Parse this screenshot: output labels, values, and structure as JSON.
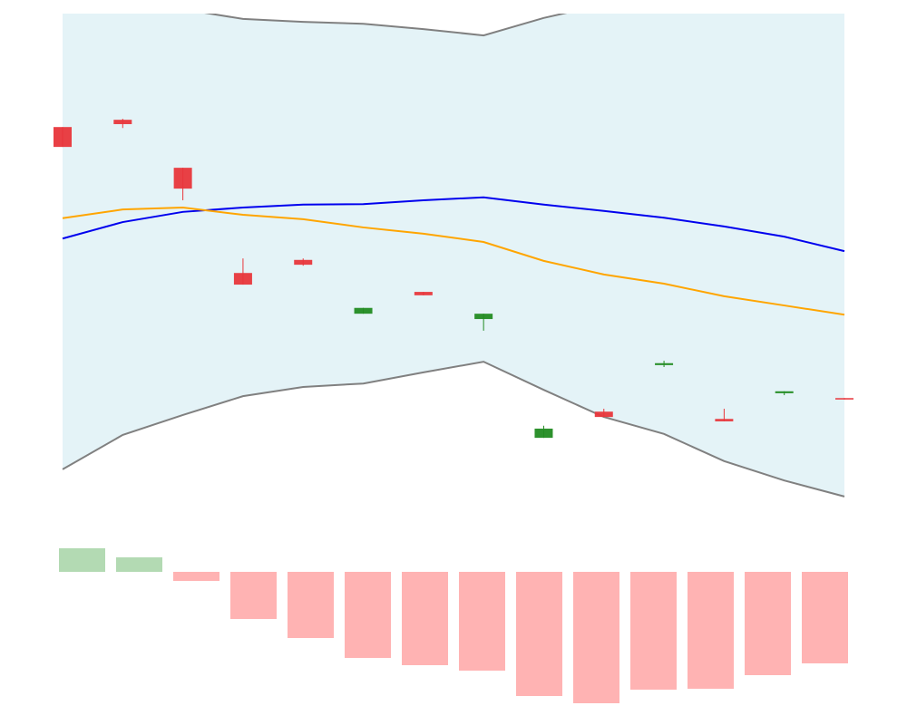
{
  "chart_data": [
    {
      "type": "candlestick",
      "open": [
        76.6,
        78.1,
        68.2,
        46.5,
        49.2,
        38.1,
        42.6,
        37.0,
        12.5,
        17.9,
        27.5,
        16.4,
        21.7,
        20.7
      ],
      "high": [
        76.6,
        78.3,
        68.2,
        49.5,
        49.5,
        39.3,
        42.6,
        38.1,
        15.0,
        18.5,
        28.4,
        18.5,
        22.1,
        20.7
      ],
      "low": [
        72.5,
        76.4,
        61.5,
        44.1,
        48.0,
        38.1,
        41.9,
        34.6,
        12.5,
        16.8,
        27.1,
        15.9,
        21.3,
        20.4
      ],
      "close": [
        72.5,
        77.2,
        63.9,
        44.1,
        48.2,
        39.3,
        41.9,
        38.1,
        14.4,
        16.8,
        27.9,
        15.9,
        22.1,
        20.4
      ],
      "up_color": "#228b22",
      "down_color": "#e8363b",
      "upper": [
        103.7,
        102.8,
        100.9,
        98.9,
        98.3,
        97.9,
        96.8,
        95.5,
        99.1,
        101.9,
        103.7,
        104.7,
        105.6,
        106.5
      ],
      "lower": [
        6.0,
        13.1,
        17.2,
        21.1,
        23.0,
        23.7,
        26.0,
        28.2,
        22.4,
        16.8,
        13.3,
        7.7,
        3.7,
        0.4
      ],
      "band_color": "#808080",
      "band_fill": "#e4f3f7",
      "series": [
        {
          "color": "#0000ee",
          "values": [
            53.6,
            57.0,
            59.1,
            60.0,
            60.6,
            60.7,
            61.5,
            62.1,
            60.6,
            59.3,
            57.9,
            56.1,
            54.0,
            51.0
          ]
        },
        {
          "color": "#ffa500",
          "values": [
            57.8,
            59.6,
            60.0,
            58.5,
            57.6,
            55.9,
            54.6,
            52.9,
            49.0,
            46.2,
            44.3,
            41.7,
            39.8,
            37.9
          ]
        }
      ],
      "ylim": [
        0,
        100
      ]
    },
    {
      "type": "bar",
      "values": [
        26,
        16,
        -10,
        -52,
        -73,
        -95,
        -103,
        -109,
        -137,
        -145,
        -130,
        -129,
        -114,
        -101
      ],
      "positive_color": "#b3dab3",
      "negative_color": "#ffb3b3",
      "ylim": [
        -145,
        26
      ]
    }
  ]
}
